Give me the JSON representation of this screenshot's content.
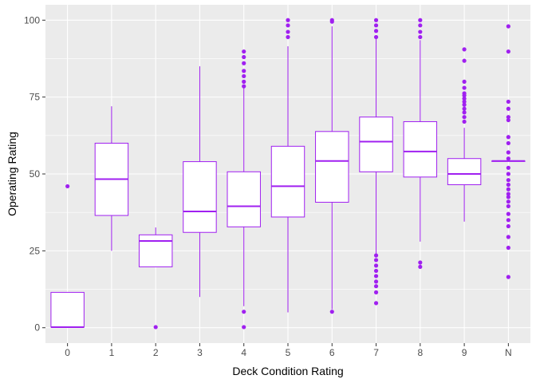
{
  "colors": {
    "panel_bg": "#ebebeb",
    "grid_major": "#ffffff",
    "box_fill": "#ffffff",
    "stroke": "#a020f0",
    "tick_text": "#4d4d4d",
    "title_text": "#000000"
  },
  "chart_data": {
    "type": "box",
    "title": "",
    "xlabel": "Deck Condition Rating",
    "ylabel": "Operating Rating",
    "ylim": [
      -5,
      105
    ],
    "yticks": [
      0,
      25,
      50,
      75,
      100
    ],
    "grid": true,
    "categories": [
      "0",
      "1",
      "2",
      "3",
      "4",
      "5",
      "6",
      "7",
      "8",
      "9",
      "N"
    ],
    "boxes": [
      {
        "category": "0",
        "min": 0,
        "q1": 0.2,
        "median": 0.2,
        "q3": 11.5,
        "max": 11.5,
        "outliers": [
          46
        ]
      },
      {
        "category": "1",
        "min": 25,
        "q1": 36.5,
        "median": 48.3,
        "q3": 60,
        "max": 72,
        "outliers": []
      },
      {
        "category": "2",
        "min": 19.8,
        "q1": 19.8,
        "median": 28.2,
        "q3": 30.2,
        "max": 32.6,
        "outliers": [
          0.2
        ]
      },
      {
        "category": "3",
        "min": 10,
        "q1": 31,
        "median": 37.8,
        "q3": 54,
        "max": 85,
        "outliers": []
      },
      {
        "category": "4",
        "min": 7,
        "q1": 32.8,
        "median": 39.5,
        "q3": 50.7,
        "max": 78,
        "outliers": [
          0.2,
          5.2,
          78.5,
          80,
          81.8,
          83.5,
          86,
          88,
          89.8
        ]
      },
      {
        "category": "5",
        "min": 5,
        "q1": 36,
        "median": 46,
        "q3": 59,
        "max": 91.5,
        "outliers": [
          94.5,
          96.2,
          98.3,
          100
        ]
      },
      {
        "category": "6",
        "min": 6,
        "q1": 40.8,
        "median": 54.2,
        "q3": 63.8,
        "max": 98,
        "outliers": [
          5.2,
          99.5,
          100
        ]
      },
      {
        "category": "7",
        "min": 24,
        "q1": 50.7,
        "median": 60.5,
        "q3": 68.5,
        "max": 94.5,
        "outliers": [
          8,
          11.5,
          13.5,
          15,
          16.8,
          18.5,
          20.2,
          22,
          23.5,
          94.5,
          96.5,
          98.3,
          100
        ]
      },
      {
        "category": "8",
        "min": 28,
        "q1": 49,
        "median": 57.3,
        "q3": 67,
        "max": 93.5,
        "outliers": [
          19.8,
          21.2,
          94.5,
          96.2,
          98.3,
          100
        ]
      },
      {
        "category": "9",
        "min": 34.5,
        "q1": 46.5,
        "median": 50,
        "q3": 55,
        "max": 65,
        "outliers": [
          67,
          68.5,
          70,
          71.2,
          72.5,
          73.5,
          74.5,
          75.5,
          76.2,
          78,
          80,
          86.8,
          90.5
        ]
      },
      {
        "category": "N",
        "min": 54.2,
        "q1": 54.2,
        "median": 54.2,
        "q3": 54.2,
        "max": 54.2,
        "outliers": [
          16.5,
          26,
          29.5,
          33,
          35,
          37,
          39.5,
          41,
          42.5,
          43.5,
          45,
          46.5,
          48,
          50,
          52,
          55,
          57,
          60,
          62,
          67.5,
          68.5,
          71.2,
          73.5,
          89.8,
          98
        ]
      }
    ]
  }
}
